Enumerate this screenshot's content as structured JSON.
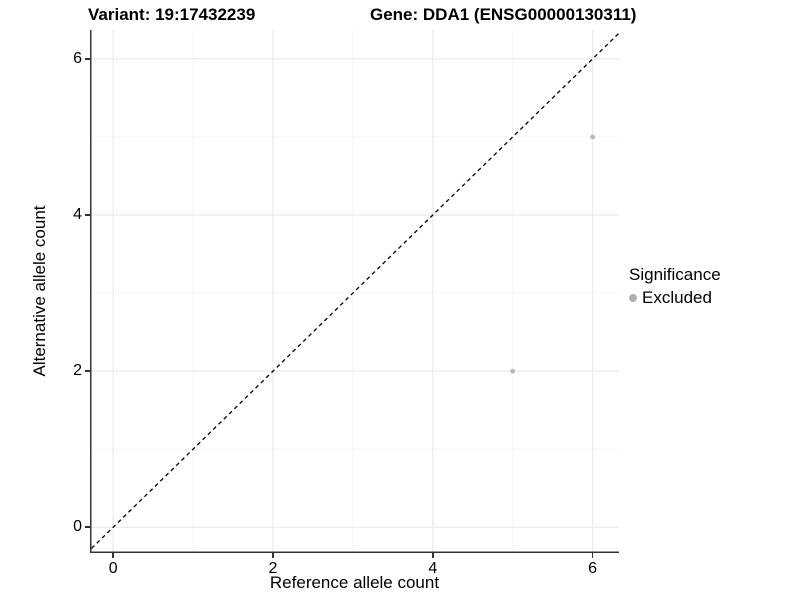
{
  "chart_data": {
    "type": "scatter",
    "title_left": "Variant: 19:17432239",
    "title_right": "Gene: DDA1 (ENSG00000130311)",
    "xlabel": "Reference allele count",
    "ylabel": "Alternative allele count",
    "xlim": [
      -0.29,
      6.33
    ],
    "ylim": [
      -0.33,
      6.37
    ],
    "x_ticks": [
      0,
      2,
      4,
      6
    ],
    "y_ticks": [
      0,
      2,
      4,
      6
    ],
    "x_minor_ticks": [
      1,
      3,
      5
    ],
    "y_minor_ticks": [
      1,
      3,
      5
    ],
    "grid": true,
    "identity_line": {
      "style": "dashed",
      "slope": 1,
      "intercept": 0,
      "color": "#000000"
    },
    "series": [
      {
        "name": "Excluded",
        "color": "#b8b8b8",
        "points": [
          {
            "x": 6,
            "y": 5
          },
          {
            "x": 5,
            "y": 2
          }
        ]
      }
    ],
    "legend": {
      "title": "Significance",
      "position": "right",
      "items": [
        {
          "label": "Excluded",
          "color": "#b0b0b0"
        }
      ]
    },
    "colors": {
      "grid_major": "#ebebeb",
      "grid_minor": "#f5f5f5",
      "axis": "#333333",
      "text": "#000000"
    }
  }
}
